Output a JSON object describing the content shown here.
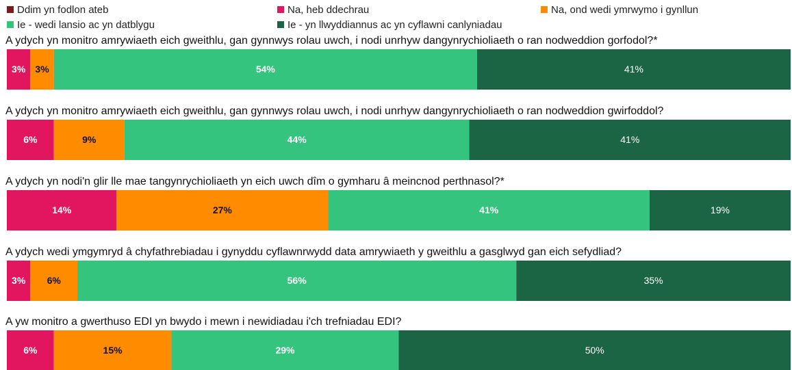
{
  "chart_data": {
    "type": "stacked_bar_horizontal",
    "categories": [
      "A ydych yn monitro amrywiaeth eich gweithlu, gan gynnwys rolau uwch, i nodi unrhyw dangynrychioliaeth o ran nodweddion gorfodol?*",
      "A ydych yn monitro amrywiaeth eich gweithlu, gan gynnwys rolau uwch, i nodi unrhyw dangynrychioliaeth o ran nodweddion gwirfoddol?",
      "A ydych yn nodi'n glir lle mae tangynrychioliaeth yn eich uwch dîm o gymharu â meincnod perthnasol?*",
      "A ydych wedi ymgymryd â chyfathrebiadau i gynyddu cyflawnrwydd data amrywiaeth y gweithlu a gasglwyd gan eich sefydliad?",
      "A yw monitro a gwerthuso EDI yn bwydo i mewn i newidiadau i'ch trefniadau EDI?"
    ],
    "series": [
      {
        "name": "Ddim yn fodlon ateb",
        "color": "#7b1b1f",
        "values": [
          0,
          0,
          0,
          0,
          0
        ]
      },
      {
        "name": "Na, heb ddechrau",
        "color": "#e2165e",
        "values": [
          3,
          6,
          14,
          3,
          6
        ],
        "value_labels": [
          "3%",
          "6%",
          "14%",
          "3%",
          "6%"
        ]
      },
      {
        "name": "Na, ond wedi ymrwymo i gynllun",
        "color": "#ff8c00",
        "values": [
          3,
          9,
          27,
          6,
          15
        ],
        "value_labels": [
          "3%",
          "9%",
          "27%",
          "6%",
          "15%"
        ]
      },
      {
        "name": "Ie - wedi lansio ac yn datblygu",
        "color": "#35c47d",
        "values": [
          54,
          44,
          41,
          56,
          29
        ],
        "value_labels": [
          "54%",
          "44%",
          "41%",
          "56%",
          "29%"
        ]
      },
      {
        "name": "Ie - yn llwyddiannus ac yn cyflawni canlyniadau",
        "color": "#1b6444",
        "values": [
          41,
          41,
          19,
          35,
          50
        ],
        "value_labels": [
          "41%",
          "41%",
          "19%",
          "35%",
          "50%"
        ]
      }
    ],
    "xlim": [
      0,
      100
    ]
  }
}
